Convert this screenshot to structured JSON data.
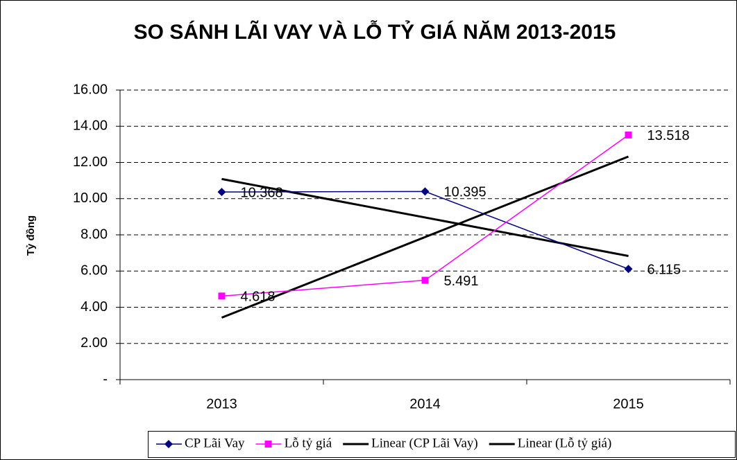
{
  "chart_data": {
    "type": "line",
    "title": "SO SÁNH LÃI VAY VÀ LỖ TỶ GIÁ NĂM 2013-2015",
    "y_label": "Tỷ đồng",
    "categories": [
      "2013",
      "2014",
      "2015"
    ],
    "series": [
      {
        "name": "CP Lãi Vay",
        "color": "#000080",
        "marker": "diamond",
        "values": [
          10.368,
          10.395,
          6.115
        ],
        "trendline": {
          "name": "Linear (CP Lãi Vay)",
          "color": "#000000"
        }
      },
      {
        "name": "Lỗ tỷ giá",
        "color": "#ff00ff",
        "marker": "square",
        "values": [
          4.618,
          5.491,
          13.518
        ],
        "trendline": {
          "name": "Linear (Lỗ tỷ giá)",
          "color": "#000000"
        }
      }
    ],
    "ylim": [
      0,
      16
    ],
    "yticks": [
      {
        "value": 0,
        "label": "-"
      },
      {
        "value": 2,
        "label": "2.00"
      },
      {
        "value": 4,
        "label": "4.00"
      },
      {
        "value": 6,
        "label": "6.00"
      },
      {
        "value": 8,
        "label": "8.00"
      },
      {
        "value": 10,
        "label": "10.00"
      },
      {
        "value": 12,
        "label": "12.00"
      },
      {
        "value": 14,
        "label": "14.00"
      },
      {
        "value": 16,
        "label": "16.00"
      }
    ],
    "grid": true,
    "legend": "bottom"
  }
}
